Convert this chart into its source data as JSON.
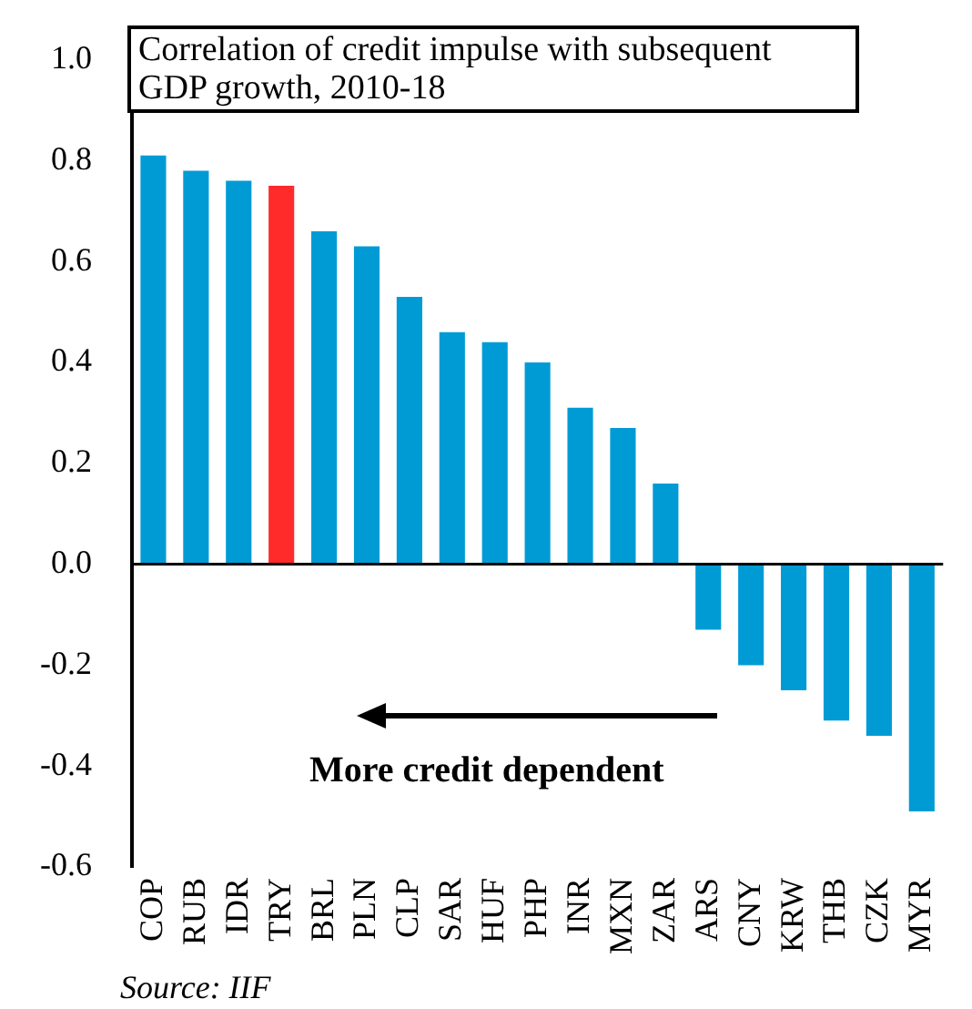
{
  "chart_data": {
    "type": "bar",
    "title": "Correlation of credit impulse with subsequent GDP growth, 2010-18",
    "categories": [
      "COP",
      "RUB",
      "IDR",
      "TRY",
      "BRL",
      "PLN",
      "CLP",
      "SAR",
      "HUF",
      "PHP",
      "INR",
      "MXN",
      "ZAR",
      "ARS",
      "CNY",
      "KRW",
      "THB",
      "CZK",
      "MYR"
    ],
    "values": [
      0.81,
      0.78,
      0.76,
      0.75,
      0.66,
      0.63,
      0.53,
      0.46,
      0.44,
      0.4,
      0.31,
      0.27,
      0.16,
      -0.13,
      -0.2,
      -0.25,
      -0.31,
      -0.34,
      -0.49
    ],
    "colors": [
      "#009bd5",
      "#009bd5",
      "#009bd5",
      "#ff2a2a",
      "#009bd5",
      "#009bd5",
      "#009bd5",
      "#009bd5",
      "#009bd5",
      "#009bd5",
      "#009bd5",
      "#009bd5",
      "#009bd5",
      "#009bd5",
      "#009bd5",
      "#009bd5",
      "#009bd5",
      "#009bd5",
      "#009bd5"
    ],
    "ylim": [
      -0.6,
      1.0
    ],
    "yticks": [
      {
        "value": -0.6,
        "label": "-0.6"
      },
      {
        "value": -0.4,
        "label": "-0.4"
      },
      {
        "value": -0.2,
        "label": "-0.2"
      },
      {
        "value": 0,
        "label": "0.0"
      },
      {
        "value": 0.2,
        "label": "0.2"
      },
      {
        "value": 0.4,
        "label": "0.4"
      },
      {
        "value": 0.6,
        "label": "0.6"
      },
      {
        "value": 0.8,
        "label": "0.8"
      },
      {
        "value": 1.0,
        "label": "1.0"
      }
    ],
    "grid": false,
    "legend": false,
    "ref_lines": [
      {
        "axis": "y",
        "value": 0,
        "color": "#000000"
      }
    ],
    "annotations": [
      "More credit dependent",
      "Source: IIF"
    ]
  }
}
